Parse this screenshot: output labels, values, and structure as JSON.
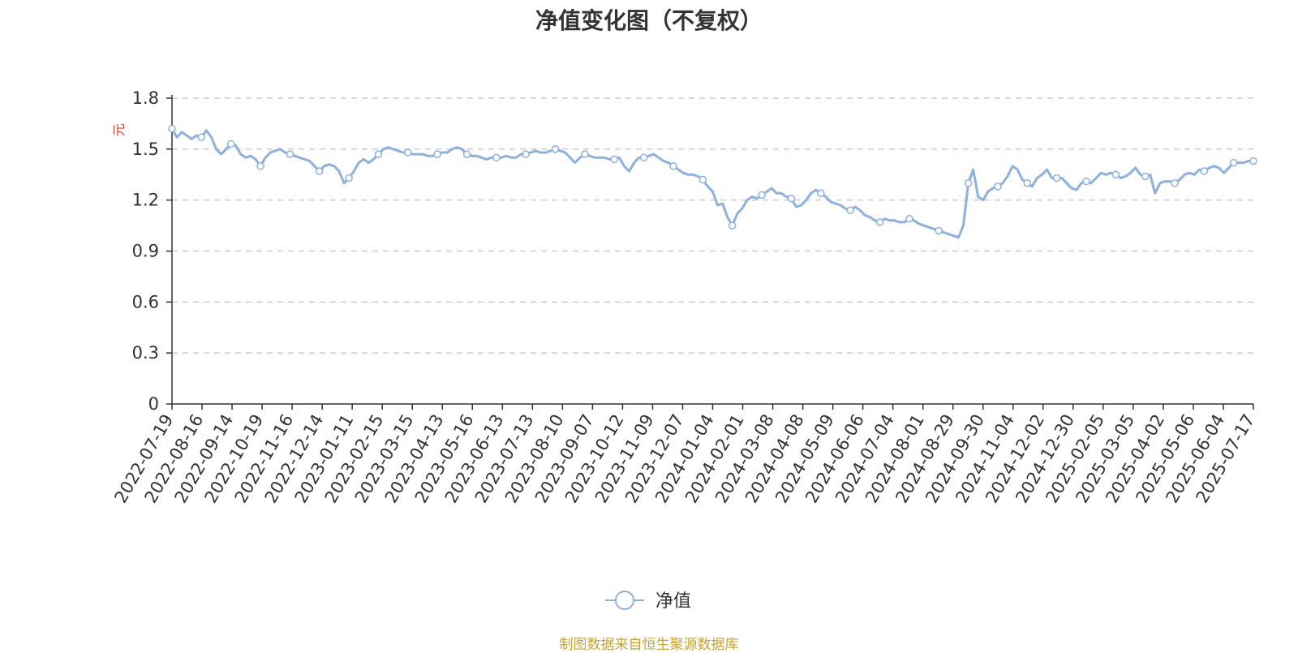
{
  "chart_data": {
    "type": "line",
    "title": "净值变化图（不复权）",
    "ylabel": "元",
    "ylim": [
      0,
      1.8
    ],
    "y_ticks": [
      "0",
      "0.3",
      "0.6",
      "0.9",
      "1.2",
      "1.5",
      "1.8"
    ],
    "x_ticks": [
      "2022-07-19",
      "2022-08-16",
      "2022-09-14",
      "2022-10-19",
      "2022-11-16",
      "2022-12-14",
      "2023-01-11",
      "2023-02-15",
      "2023-03-15",
      "2023-04-13",
      "2023-05-16",
      "2023-06-13",
      "2023-07-13",
      "2023-08-10",
      "2023-09-07",
      "2023-10-12",
      "2023-11-09",
      "2023-12-07",
      "2024-01-04",
      "2024-02-01",
      "2024-03-08",
      "2024-04-08",
      "2024-05-09",
      "2024-06-06",
      "2024-07-04",
      "2024-08-01",
      "2024-08-29",
      "2024-09-30",
      "2024-11-04",
      "2024-12-02",
      "2024-12-30",
      "2025-02-05",
      "2025-03-05",
      "2025-04-02",
      "2025-05-06",
      "2025-06-04",
      "2025-07-17"
    ],
    "grid": "horizontal dashed",
    "legend_position": "bottom-center",
    "series": [
      {
        "name": "净值",
        "color": "#8eb0dd",
        "values": [
          1.62,
          1.57,
          1.6,
          1.58,
          1.56,
          1.58,
          1.57,
          1.61,
          1.57,
          1.5,
          1.47,
          1.5,
          1.53,
          1.52,
          1.47,
          1.45,
          1.46,
          1.44,
          1.4,
          1.45,
          1.48,
          1.49,
          1.5,
          1.48,
          1.47,
          1.46,
          1.45,
          1.44,
          1.43,
          1.4,
          1.37,
          1.4,
          1.41,
          1.4,
          1.37,
          1.3,
          1.33,
          1.37,
          1.42,
          1.44,
          1.42,
          1.44,
          1.47,
          1.5,
          1.51,
          1.5,
          1.49,
          1.48,
          1.48,
          1.47,
          1.47,
          1.47,
          1.46,
          1.46,
          1.47,
          1.48,
          1.48,
          1.5,
          1.51,
          1.5,
          1.47,
          1.46,
          1.46,
          1.45,
          1.44,
          1.45,
          1.45,
          1.45,
          1.46,
          1.45,
          1.45,
          1.47,
          1.47,
          1.48,
          1.49,
          1.48,
          1.48,
          1.49,
          1.5,
          1.49,
          1.48,
          1.45,
          1.42,
          1.45,
          1.47,
          1.46,
          1.45,
          1.45,
          1.45,
          1.44,
          1.44,
          1.45,
          1.4,
          1.37,
          1.42,
          1.45,
          1.45,
          1.46,
          1.47,
          1.45,
          1.43,
          1.42,
          1.4,
          1.38,
          1.36,
          1.35,
          1.35,
          1.34,
          1.32,
          1.28,
          1.25,
          1.17,
          1.18,
          1.1,
          1.05,
          1.12,
          1.15,
          1.2,
          1.22,
          1.21,
          1.23,
          1.25,
          1.27,
          1.24,
          1.24,
          1.22,
          1.21,
          1.16,
          1.17,
          1.2,
          1.24,
          1.26,
          1.24,
          1.22,
          1.19,
          1.18,
          1.17,
          1.15,
          1.14,
          1.16,
          1.14,
          1.11,
          1.1,
          1.08,
          1.07,
          1.09,
          1.08,
          1.08,
          1.07,
          1.07,
          1.09,
          1.08,
          1.06,
          1.05,
          1.04,
          1.03,
          1.02,
          1.01,
          1.0,
          0.99,
          0.98,
          1.05,
          1.3,
          1.38,
          1.22,
          1.2,
          1.25,
          1.27,
          1.28,
          1.3,
          1.34,
          1.4,
          1.38,
          1.32,
          1.3,
          1.28,
          1.33,
          1.35,
          1.38,
          1.33,
          1.33,
          1.33,
          1.3,
          1.27,
          1.26,
          1.3,
          1.31,
          1.3,
          1.33,
          1.36,
          1.35,
          1.36,
          1.35,
          1.33,
          1.34,
          1.36,
          1.39,
          1.35,
          1.34,
          1.35,
          1.24,
          1.3,
          1.31,
          1.31,
          1.3,
          1.32,
          1.35,
          1.36,
          1.35,
          1.38,
          1.37,
          1.39,
          1.4,
          1.39,
          1.36,
          1.39,
          1.42,
          1.42,
          1.42,
          1.43,
          1.43
        ]
      }
    ]
  },
  "footer": "制图数据来自恒生聚源数据库"
}
